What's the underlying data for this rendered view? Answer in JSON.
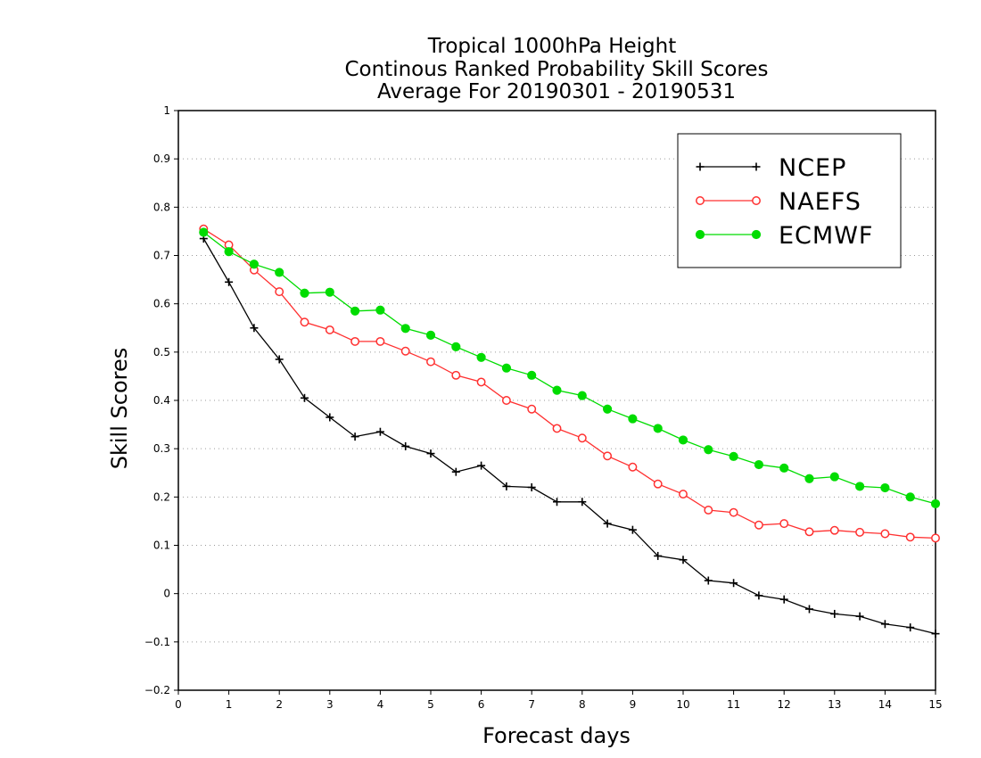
{
  "chart_data": {
    "type": "line",
    "title_lines": [
      "Tropical 1000hPa Height",
      "Continous Ranked Probability Skill Scores",
      "Average For 20190301 - 20190531"
    ],
    "xlabel": "Forecast days",
    "ylabel": "Skill Scores",
    "xlim": [
      0,
      15
    ],
    "ylim": [
      -0.2,
      1
    ],
    "x_ticks": [
      "0",
      "1",
      "2",
      "3",
      "4",
      "5",
      "6",
      "7",
      "8",
      "9",
      "10",
      "11",
      "12",
      "13",
      "14",
      "15"
    ],
    "y_ticks": [
      "−0.2",
      "−0.1",
      "0",
      "0.1",
      "0.2",
      "0.3",
      "0.4",
      "0.5",
      "0.6",
      "0.7",
      "0.8",
      "0.9",
      "1"
    ],
    "y_tick_values": [
      -0.2,
      -0.1,
      0,
      0.1,
      0.2,
      0.3,
      0.4,
      0.5,
      0.6,
      0.7,
      0.8,
      0.9,
      1
    ],
    "grid": "horizontal dotted",
    "legend_position": "top-right",
    "x": [
      0.5,
      1,
      1.5,
      2,
      2.5,
      3,
      3.5,
      4,
      4.5,
      5,
      5.5,
      6,
      6.5,
      7,
      7.5,
      8,
      8.5,
      9,
      9.5,
      10,
      10.5,
      11,
      11.5,
      12,
      12.5,
      13,
      13.5,
      14,
      14.5,
      15
    ],
    "series": [
      {
        "name": "NCEP",
        "color": "#000000",
        "marker": "plus",
        "values": [
          0.735,
          0.645,
          0.55,
          0.485,
          0.405,
          0.365,
          0.325,
          0.335,
          0.305,
          0.29,
          0.252,
          0.265,
          0.222,
          0.22,
          0.19,
          0.19,
          0.145,
          0.132,
          0.078,
          0.07,
          0.027,
          0.022,
          -0.004,
          -0.012,
          -0.032,
          -0.042,
          -0.047,
          -0.063,
          -0.07,
          -0.083
        ]
      },
      {
        "name": "NAEFS",
        "color": "#ff3030",
        "marker": "open-circle",
        "values": [
          0.755,
          0.722,
          0.67,
          0.625,
          0.562,
          0.546,
          0.522,
          0.522,
          0.502,
          0.48,
          0.452,
          0.438,
          0.4,
          0.382,
          0.342,
          0.322,
          0.285,
          0.262,
          0.227,
          0.206,
          0.173,
          0.168,
          0.142,
          0.145,
          0.128,
          0.131,
          0.127,
          0.124,
          0.117,
          0.115
        ]
      },
      {
        "name": "ECMWF",
        "color": "#00dc00",
        "marker": "filled-circle",
        "values": [
          0.748,
          0.708,
          0.682,
          0.665,
          0.622,
          0.624,
          0.585,
          0.587,
          0.549,
          0.535,
          0.511,
          0.489,
          0.467,
          0.452,
          0.421,
          0.41,
          0.382,
          0.362,
          0.342,
          0.318,
          0.298,
          0.284,
          0.267,
          0.26,
          0.238,
          0.242,
          0.222,
          0.219,
          0.2,
          0.186
        ]
      }
    ]
  }
}
